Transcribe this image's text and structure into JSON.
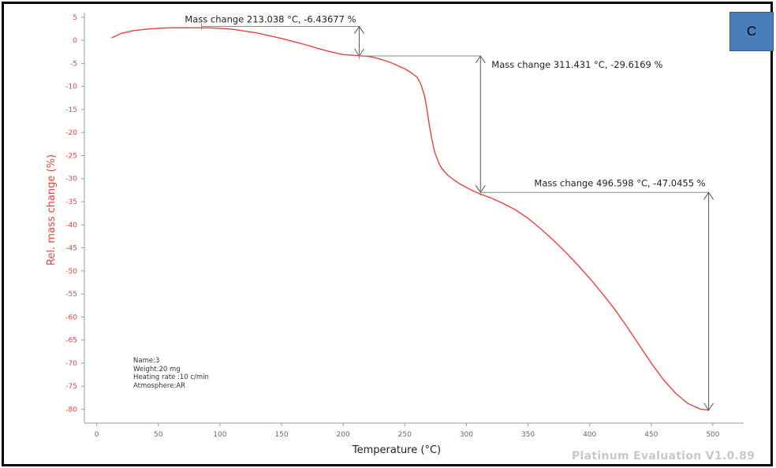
{
  "chart_data": {
    "type": "line",
    "xlabel": "Temperature (°C)",
    "ylabel": "Rel. mass change (%)",
    "xlim": [
      -10,
      525
    ],
    "ylim": [
      -83,
      6
    ],
    "x_ticks": [
      0,
      50,
      100,
      150,
      200,
      250,
      300,
      350,
      400,
      450,
      500
    ],
    "y_ticks": [
      5,
      0,
      -5,
      -10,
      -15,
      -20,
      -25,
      -30,
      -35,
      -40,
      -45,
      -50,
      -55,
      -60,
      -65,
      -70,
      -75,
      -80
    ],
    "colors": {
      "curve": "#e8413c",
      "axis_labels": "#e8413c",
      "annotation": "#666666"
    },
    "series": [
      {
        "x": [
          12,
          20,
          30,
          40,
          50,
          60,
          70,
          80,
          90,
          100,
          110,
          120,
          130,
          140,
          150,
          160,
          170,
          180,
          190,
          200,
          210,
          215,
          220,
          225,
          230,
          235,
          240,
          245,
          250,
          255,
          260,
          263,
          266,
          268,
          270,
          272,
          274,
          276,
          278,
          280,
          285,
          290,
          295,
          300,
          305,
          311,
          320,
          330,
          340,
          350,
          360,
          370,
          380,
          390,
          400,
          410,
          420,
          430,
          440,
          450,
          460,
          470,
          480,
          490,
          497
        ],
        "y": [
          0.5,
          1.5,
          2.1,
          2.4,
          2.6,
          2.7,
          2.7,
          2.7,
          2.7,
          2.6,
          2.4,
          2.0,
          1.6,
          1.0,
          0.4,
          -0.3,
          -1.0,
          -1.8,
          -2.5,
          -3.1,
          -3.3,
          -3.4,
          -3.5,
          -3.7,
          -4.1,
          -4.5,
          -5.0,
          -5.6,
          -6.2,
          -7.0,
          -8.0,
          -9.5,
          -12.0,
          -15.0,
          -18.5,
          -21.5,
          -24.0,
          -25.5,
          -26.8,
          -27.8,
          -29.3,
          -30.3,
          -31.2,
          -31.9,
          -32.6,
          -33.3,
          -34.2,
          -35.4,
          -36.8,
          -38.6,
          -40.8,
          -43.2,
          -45.8,
          -48.6,
          -51.6,
          -54.8,
          -58.2,
          -62.0,
          -66.0,
          -70.0,
          -73.6,
          -76.6,
          -78.8,
          -80.0,
          -80.2
        ]
      }
    ],
    "annotations": [
      {
        "text": "Mass change 213.038 °C,  -6.43677 %",
        "x_from": 213.038,
        "y_top": 3,
        "y_bottom": -3.4,
        "x_line_start": 85
      },
      {
        "text": "Mass change 311.431 °C,  -29.6169 %",
        "x_from": 311.431,
        "y_top": -3.4,
        "y_bottom": -33.0,
        "x_line_start": 213.038
      },
      {
        "text": "Mass change 496.598 °C,  -47.0455 %",
        "x_from": 496.598,
        "y_top": -33.0,
        "y_bottom": -80.2,
        "x_line_start": 311.431
      }
    ]
  },
  "panel_label": "C",
  "sample_info": [
    "Name:3",
    "Weight:20 mg",
    "Heating rate :10 c/min",
    "Atmosphere:AR"
  ],
  "watermark": "Platinum Evaluation V1.0.89"
}
